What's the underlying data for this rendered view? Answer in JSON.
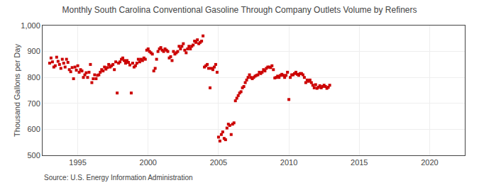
{
  "chart_data": {
    "type": "scatter",
    "title": "Monthly South Carolina Conventional Gasoline Through Company Outlets Volume by Refiners",
    "ylabel": "Thousand Gallons per Day",
    "annotations": [
      "Source: U.S. Energy Information Administration"
    ],
    "color": "#cc0000",
    "marker": "square",
    "grid": true,
    "xlim": [
      1992.5,
      2022.5
    ],
    "ylim": [
      500,
      1000
    ],
    "xticks": [
      1995,
      2000,
      2005,
      2010,
      2015,
      2020
    ],
    "yticks": [
      500,
      600,
      700,
      800,
      900,
      {
        "value": 1000,
        "label": "1,000"
      }
    ],
    "x": [
      1993.0,
      1993.1,
      1993.2,
      1993.3,
      1993.4,
      1993.5,
      1993.6,
      1993.7,
      1993.8,
      1993.9,
      1994.0,
      1994.1,
      1994.2,
      1994.3,
      1994.4,
      1994.5,
      1994.6,
      1994.7,
      1994.8,
      1994.9,
      1995.0,
      1995.1,
      1995.2,
      1995.3,
      1995.4,
      1995.5,
      1995.6,
      1995.7,
      1995.8,
      1995.9,
      1996.0,
      1996.1,
      1996.2,
      1996.3,
      1996.4,
      1996.5,
      1996.6,
      1996.7,
      1996.8,
      1996.9,
      1997.0,
      1997.1,
      1997.2,
      1997.3,
      1997.4,
      1997.5,
      1997.6,
      1997.7,
      1997.8,
      1997.9,
      1998.0,
      1998.1,
      1998.2,
      1998.3,
      1998.4,
      1998.5,
      1998.6,
      1998.7,
      1998.8,
      1998.9,
      1999.0,
      1999.1,
      1999.2,
      1999.3,
      1999.4,
      1999.5,
      1999.6,
      1999.7,
      1999.8,
      1999.9,
      2000.0,
      2000.1,
      2000.2,
      2000.3,
      2000.4,
      2000.5,
      2000.6,
      2000.7,
      2000.8,
      2000.9,
      2001.0,
      2001.1,
      2001.2,
      2001.3,
      2001.4,
      2001.5,
      2001.6,
      2001.7,
      2001.8,
      2001.9,
      2002.0,
      2002.1,
      2002.2,
      2002.3,
      2002.4,
      2002.5,
      2002.6,
      2002.7,
      2002.8,
      2002.9,
      2003.0,
      2003.1,
      2003.2,
      2003.3,
      2003.4,
      2003.5,
      2003.6,
      2003.7,
      2003.8,
      2003.9,
      2004.0,
      2004.1,
      2004.2,
      2004.3,
      2004.4,
      2004.5,
      2004.6,
      2004.7,
      2004.8,
      2004.9,
      2005.0,
      2005.1,
      2005.2,
      2005.3,
      2005.4,
      2005.5,
      2005.6,
      2005.7,
      2005.8,
      2005.9,
      2006.0,
      2006.1,
      2006.2,
      2006.3,
      2006.4,
      2006.5,
      2006.6,
      2006.7,
      2006.8,
      2006.9,
      2007.0,
      2007.1,
      2007.2,
      2007.3,
      2007.4,
      2007.5,
      2007.6,
      2007.7,
      2007.8,
      2007.9,
      2008.0,
      2008.1,
      2008.2,
      2008.3,
      2008.4,
      2008.5,
      2008.6,
      2008.7,
      2008.8,
      2008.9,
      2009.0,
      2009.1,
      2009.2,
      2009.3,
      2009.4,
      2009.5,
      2009.6,
      2009.7,
      2009.8,
      2009.9,
      2010.0,
      2010.1,
      2010.2,
      2010.3,
      2010.4,
      2010.5,
      2010.6,
      2010.7,
      2010.8,
      2010.9,
      2011.0,
      2011.1,
      2011.2,
      2011.3,
      2011.4,
      2011.5,
      2011.6,
      2011.7,
      2011.8,
      2011.9,
      2012.0,
      2012.1,
      2012.2,
      2012.3,
      2012.4,
      2012.5,
      2012.6,
      2012.7,
      2012.8,
      2012.9
    ],
    "values": [
      855,
      875,
      860,
      840,
      845,
      878,
      862,
      850,
      835,
      870,
      855,
      840,
      870,
      858,
      830,
      822,
      838,
      795,
      840,
      828,
      845,
      820,
      830,
      825,
      800,
      810,
      818,
      800,
      820,
      850,
      780,
      795,
      810,
      795,
      808,
      810,
      820,
      830,
      825,
      840,
      832,
      838,
      850,
      840,
      845,
      850,
      830,
      860,
      740,
      855,
      860,
      870,
      875,
      865,
      855,
      865,
      858,
      848,
      740,
      855,
      840,
      845,
      855,
      870,
      860,
      870,
      865,
      875,
      870,
      905,
      910,
      900,
      895,
      890,
      825,
      835,
      870,
      900,
      910,
      915,
      905,
      900,
      910,
      905,
      900,
      875,
      880,
      865,
      900,
      890,
      895,
      900,
      920,
      910,
      920,
      930,
      905,
      895,
      910,
      920,
      910,
      920,
      925,
      940,
      935,
      945,
      930,
      935,
      940,
      960,
      840,
      845,
      850,
      835,
      760,
      835,
      830,
      840,
      850,
      820,
      570,
      555,
      580,
      590,
      565,
      560,
      605,
      620,
      615,
      580,
      620,
      625,
      710,
      720,
      730,
      740,
      745,
      760,
      765,
      780,
      790,
      800,
      810,
      800,
      795,
      800,
      805,
      808,
      810,
      820,
      815,
      820,
      830,
      825,
      835,
      840,
      840,
      838,
      845,
      830,
      798,
      800,
      805,
      800,
      808,
      812,
      808,
      800,
      808,
      820,
      715,
      800,
      810,
      810,
      815,
      820,
      812,
      808,
      815,
      815,
      810,
      800,
      780,
      790,
      785,
      790,
      780,
      770,
      760,
      772,
      758,
      762,
      768,
      760,
      765,
      770,
      765,
      758,
      762,
      770
    ]
  }
}
